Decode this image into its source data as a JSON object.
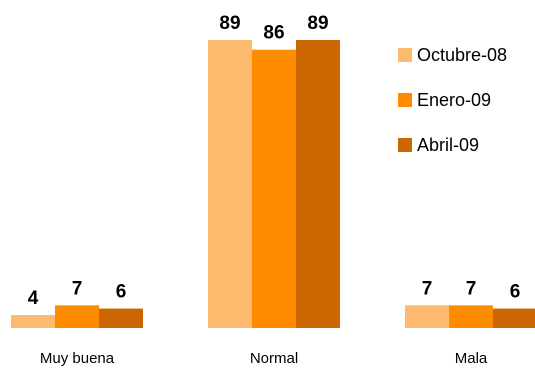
{
  "chart_data": {
    "type": "bar",
    "title": "",
    "xlabel": "",
    "ylabel": "",
    "categories": [
      "Muy buena",
      "Normal",
      "Mala"
    ],
    "series": [
      {
        "name": "Octubre-08",
        "values": [
          4,
          89,
          7
        ],
        "color": "#FDB96E"
      },
      {
        "name": "Enero-09",
        "values": [
          7,
          86,
          7
        ],
        "color": "#FF8C00"
      },
      {
        "name": "Abril-09",
        "values": [
          6,
          89,
          6
        ],
        "color": "#CC6600"
      }
    ],
    "ylim": [
      0,
      89
    ],
    "data_labels": true,
    "gridlines": false,
    "legend": "right"
  }
}
